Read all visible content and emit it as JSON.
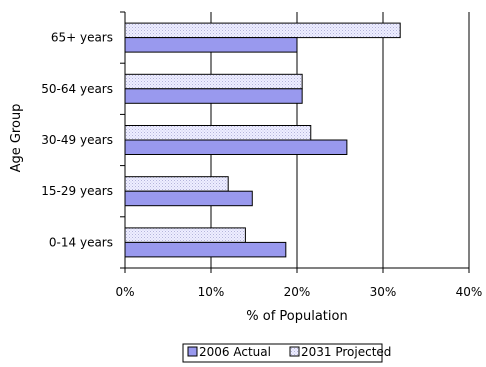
{
  "chart_data": {
    "type": "bar",
    "orientation": "horizontal",
    "categories": [
      "65+ years",
      "50-64 years",
      "30-49 years",
      "15-29 years",
      "0-14 years"
    ],
    "series": [
      {
        "name": "2031 Projected",
        "values": [
          32.0,
          20.6,
          21.6,
          12.0,
          14.0
        ],
        "color": "#e6e6f5",
        "pattern": "dotted-light"
      },
      {
        "name": "2006 Actual",
        "values": [
          20.0,
          20.6,
          25.8,
          14.8,
          18.7
        ],
        "color": "#9999ee",
        "pattern": "solid"
      }
    ],
    "xlabel": "% of Population",
    "ylabel": "Age Group",
    "xlim": [
      0,
      40
    ],
    "xticks": [
      "0%",
      "10%",
      "20%",
      "30%",
      "40%"
    ],
    "grid": "vertical",
    "legend_position": "bottom",
    "legend_order": [
      "2006 Actual",
      "2031 Projected"
    ]
  }
}
